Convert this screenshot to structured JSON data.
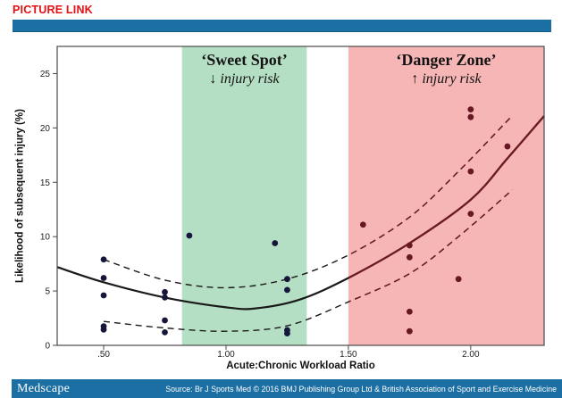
{
  "header": {
    "picture_link": "PICTURE LINK"
  },
  "footer": {
    "brand": "Medscape",
    "source": "Source: Br J Sports Med © 2016 BMJ Publishing Group Ltd & British Association of Sport and Exercise Medicine"
  },
  "colors": {
    "bar_blue": "#1b6fa3",
    "link_red": "#e60f12",
    "sweet_green": "#b5dfc4",
    "danger_pink": "#f7b6b6",
    "dot_navy": "#16163a",
    "dot_maroon": "#681822",
    "curve_black": "#1a1a1a",
    "curve_maroon": "#6e1a22",
    "axis_gray": "#4a4a4a"
  },
  "chart_data": {
    "type": "scatter",
    "xlabel": "Acute:Chronic Workload Ratio",
    "ylabel": "Likelihood of subsequent injury (%)",
    "xlim": [
      0.31,
      2.3
    ],
    "ylim": [
      0,
      27.5
    ],
    "grid": false,
    "legend": "none",
    "x_ticks": [
      {
        "value": 0.5,
        "label": ".50"
      },
      {
        "value": 1.0,
        "label": "1.00"
      },
      {
        "value": 1.5,
        "label": "1.50"
      },
      {
        "value": 2.0,
        "label": "2.00"
      }
    ],
    "y_ticks": [
      {
        "value": 0,
        "label": "0"
      },
      {
        "value": 5,
        "label": "5"
      },
      {
        "value": 10,
        "label": "10"
      },
      {
        "value": 15,
        "label": "15"
      },
      {
        "value": 20,
        "label": "20"
      },
      {
        "value": 25,
        "label": "25"
      }
    ],
    "zones": [
      {
        "name": "sweet-spot",
        "label": "‘Sweet Spot’",
        "sublabel": "↓ injury risk",
        "from": 0.82,
        "to": 1.33,
        "color": "#b5dfc4"
      },
      {
        "name": "danger-zone",
        "label": "‘Danger Zone’",
        "sublabel": "↑ injury risk",
        "from": 1.5,
        "to": 2.3,
        "color": "#f7b6b6"
      }
    ],
    "points": [
      [
        0.5,
        7.9
      ],
      [
        0.5,
        6.2
      ],
      [
        0.5,
        4.6
      ],
      [
        0.5,
        1.75
      ],
      [
        0.5,
        1.45
      ],
      [
        0.75,
        4.9
      ],
      [
        0.75,
        4.4
      ],
      [
        0.75,
        2.3
      ],
      [
        0.75,
        1.2
      ],
      [
        0.85,
        10.1
      ],
      [
        1.2,
        9.4
      ],
      [
        1.25,
        6.1
      ],
      [
        1.25,
        5.1
      ],
      [
        1.25,
        1.4
      ],
      [
        1.25,
        1.1
      ],
      [
        1.56,
        11.1
      ],
      [
        1.75,
        9.2
      ],
      [
        1.75,
        8.1
      ],
      [
        1.75,
        3.1
      ],
      [
        1.75,
        1.3
      ],
      [
        1.95,
        6.1
      ],
      [
        2.0,
        21.7
      ],
      [
        2.0,
        21.0
      ],
      [
        2.0,
        16.0
      ],
      [
        2.0,
        12.1
      ],
      [
        2.15,
        18.3
      ]
    ],
    "curves": {
      "fit": [
        [
          0.31,
          7.2
        ],
        [
          0.5,
          5.8
        ],
        [
          0.75,
          4.4
        ],
        [
          1.0,
          3.5
        ],
        [
          1.12,
          3.4
        ],
        [
          1.3,
          4.2
        ],
        [
          1.5,
          6.2
        ],
        [
          1.75,
          9.4
        ],
        [
          2.0,
          13.4
        ],
        [
          2.15,
          17.2
        ],
        [
          2.3,
          21.1
        ]
      ],
      "upper_ci": [
        [
          0.5,
          7.9
        ],
        [
          0.75,
          6.0
        ],
        [
          1.0,
          5.3
        ],
        [
          1.25,
          6.1
        ],
        [
          1.5,
          8.3
        ],
        [
          1.75,
          11.8
        ],
        [
          1.95,
          16.0
        ],
        [
          2.16,
          20.9
        ]
      ],
      "lower_ci": [
        [
          0.5,
          2.2
        ],
        [
          0.75,
          1.6
        ],
        [
          1.0,
          1.3
        ],
        [
          1.25,
          1.8
        ],
        [
          1.5,
          4.0
        ],
        [
          1.75,
          6.6
        ],
        [
          1.95,
          10.0
        ],
        [
          2.17,
          14.3
        ]
      ]
    }
  }
}
